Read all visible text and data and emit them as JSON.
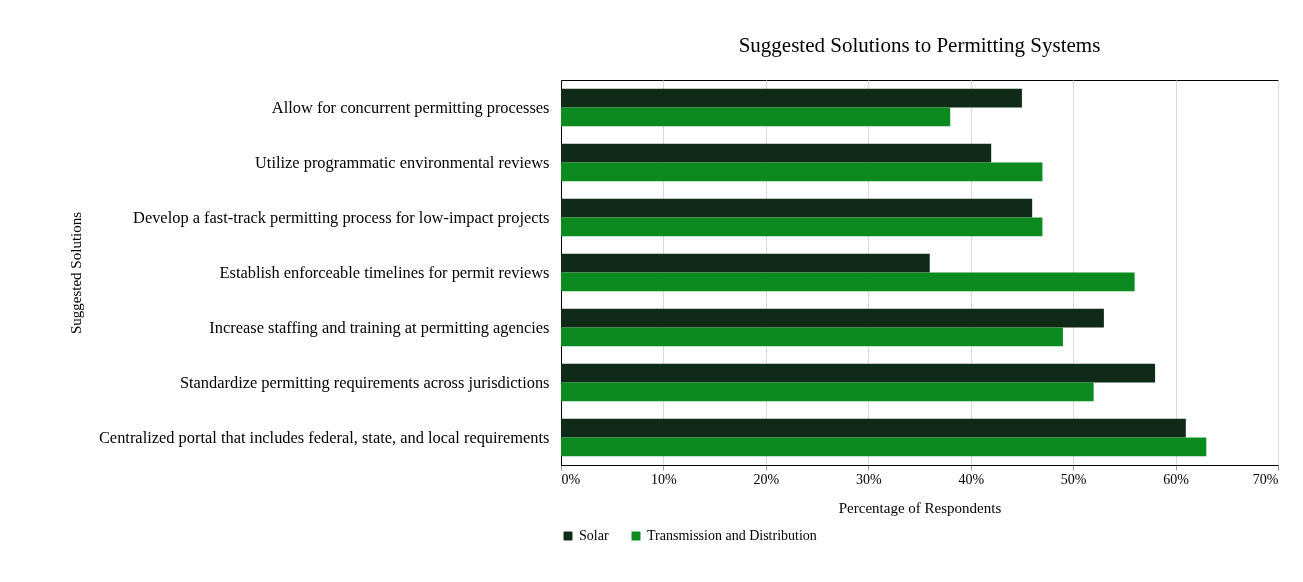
{
  "chart_data": {
    "type": "bar",
    "orientation": "horizontal",
    "title": "Suggested Solutions to Permitting Systems",
    "xlabel": "Percentage of Respondents",
    "ylabel": "Suggested Solutions",
    "categories": [
      "Allow for concurrent permitting processes",
      "Utilize programmatic environmental reviews",
      "Develop a fast-track permitting process for low-impact projects",
      "Establish enforceable timelines for permit reviews",
      "Increase staffing and training at permitting agencies",
      "Standardize permitting requirements across jurisdictions",
      "Centralized portal that includes federal, state, and local requirements"
    ],
    "series": [
      {
        "name": "Solar",
        "color": "#0f2a17",
        "values": [
          45,
          42,
          46,
          36,
          53,
          58,
          61
        ]
      },
      {
        "name": "Transmission and Distribution",
        "color": "#0a8a1f",
        "values": [
          38,
          47,
          47,
          56,
          49,
          52,
          63
        ]
      }
    ],
    "xlim": [
      0,
      70
    ],
    "xticks": [
      {
        "value": 0,
        "label": "0%"
      },
      {
        "value": 10,
        "label": "10%"
      },
      {
        "value": 20,
        "label": "20%"
      },
      {
        "value": 30,
        "label": "30%"
      },
      {
        "value": 40,
        "label": "40%"
      },
      {
        "value": 50,
        "label": "50%"
      },
      {
        "value": 60,
        "label": "60%"
      },
      {
        "value": 70,
        "label": "70%"
      }
    ],
    "grid": "x",
    "legend": "bottom"
  }
}
